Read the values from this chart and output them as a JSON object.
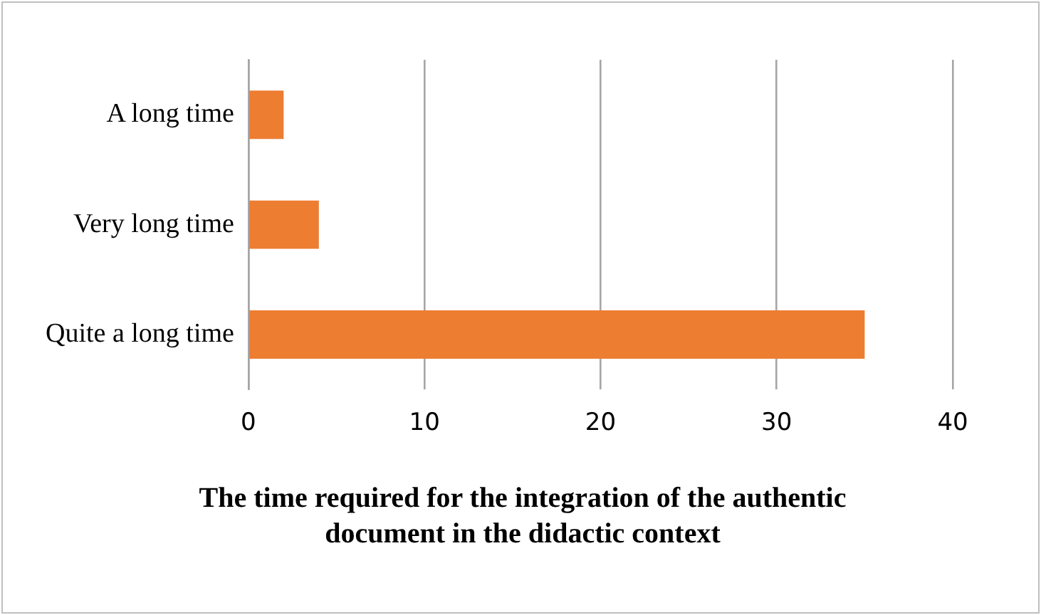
{
  "chart_data": {
    "type": "bar",
    "orientation": "horizontal",
    "title": "The time required for the integration of the authentic document in the didactic context",
    "categories": [
      "A long time",
      "Very long time",
      "Quite a long time"
    ],
    "values": [
      2,
      4,
      35
    ],
    "color": "#ed7d31",
    "xlim": [
      0,
      40
    ],
    "xticks": [
      0,
      10,
      20,
      30,
      40
    ],
    "grid": "x"
  }
}
